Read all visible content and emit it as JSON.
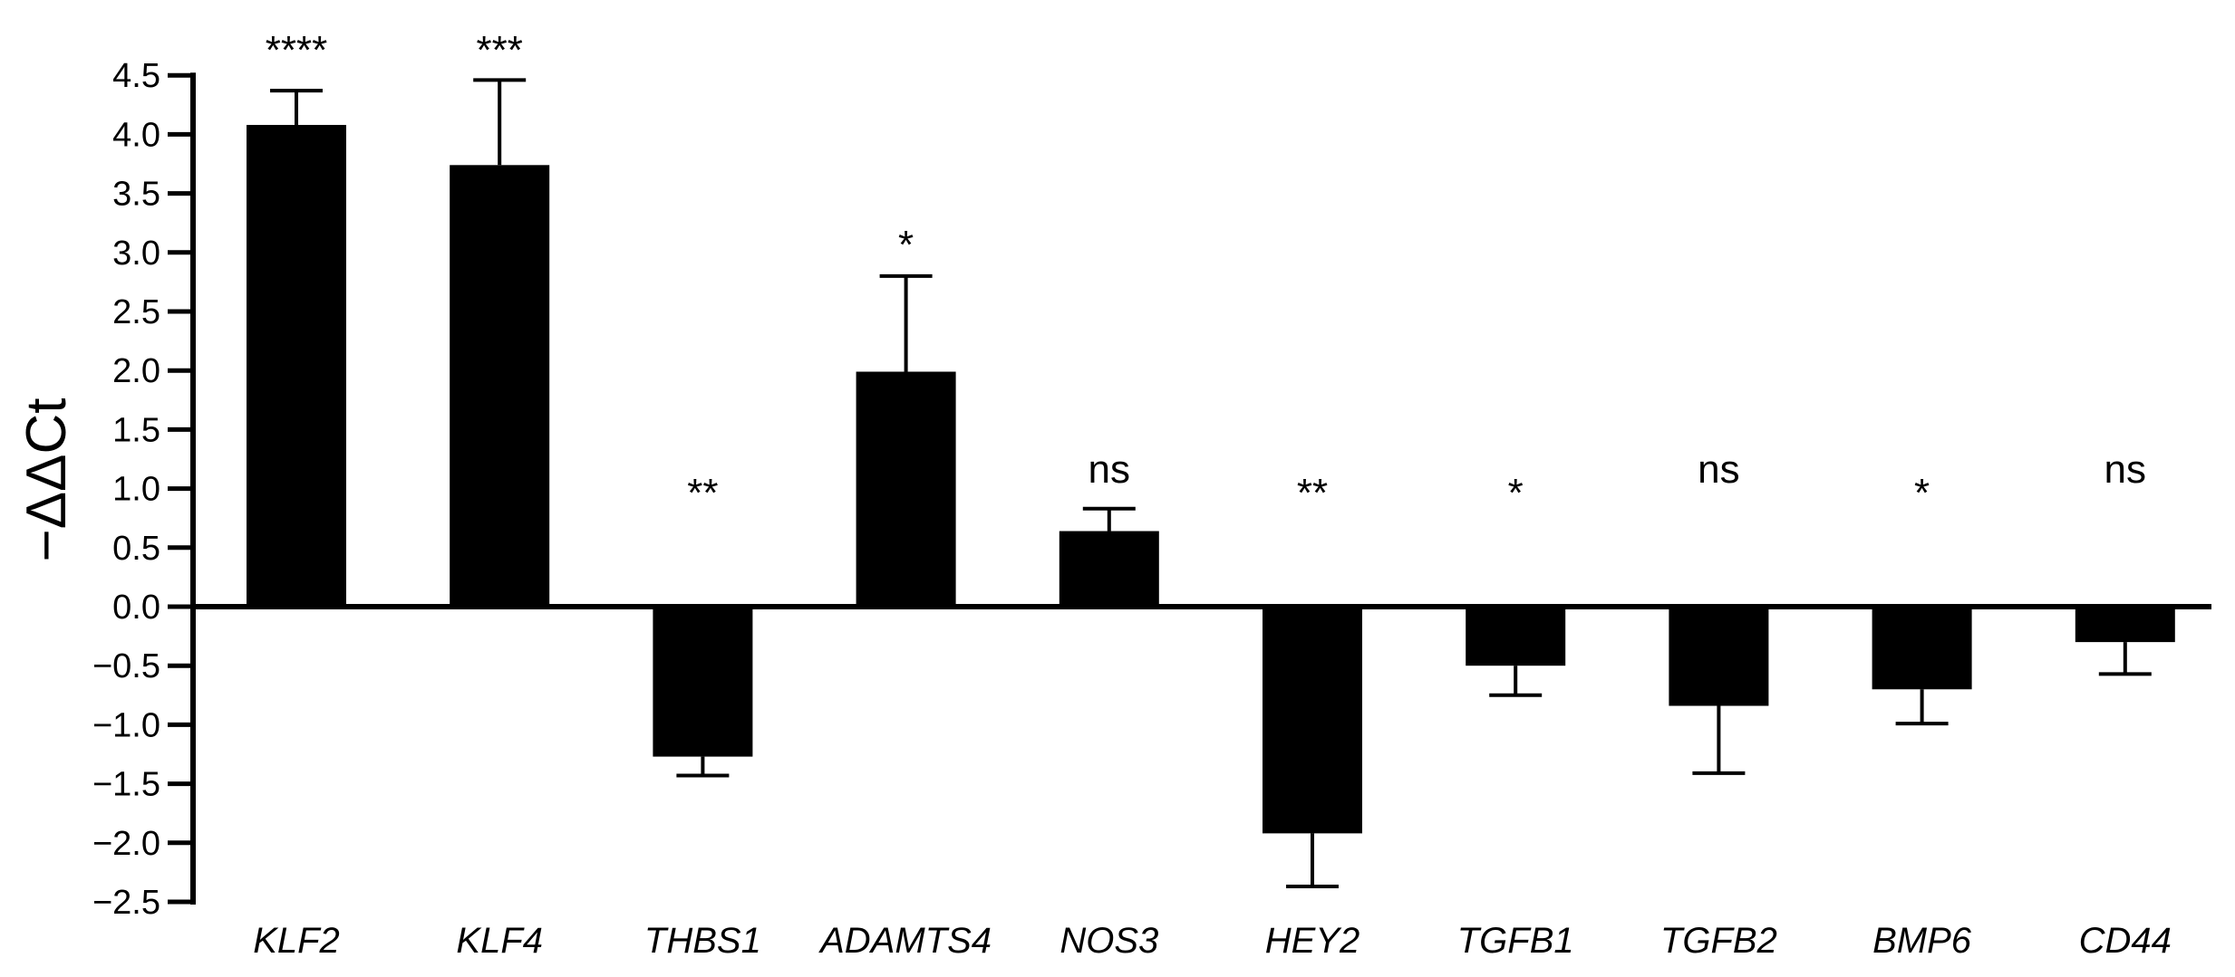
{
  "chart_data": {
    "type": "bar",
    "title": "",
    "xlabel": "",
    "ylabel": "−ΔΔCt",
    "ylim": [
      -2.5,
      4.5
    ],
    "yticks": [
      4.5,
      4.0,
      3.5,
      3.0,
      2.5,
      2.0,
      1.5,
      1.0,
      0.5,
      0.0,
      -0.5,
      -1.0,
      -1.5,
      -2.0,
      -2.5
    ],
    "ytick_labels": [
      "4.5",
      "4.0",
      "3.5",
      "3.0",
      "2.5",
      "2.0",
      "1.5",
      "1.0",
      "0.5",
      "0.0",
      "−0.5",
      "−1.0",
      "−1.5",
      "−2.0",
      "−2.5"
    ],
    "categories": [
      "KLF2",
      "KLF4",
      "THBS1",
      "ADAMTS4",
      "NOS3",
      "HEY2",
      "TGFB1",
      "TGFB2",
      "BMP6",
      "CD44"
    ],
    "values": [
      4.08,
      3.74,
      -1.27,
      1.99,
      0.64,
      -1.92,
      -0.5,
      -0.84,
      -0.7,
      -0.3
    ],
    "error": [
      0.29,
      0.72,
      0.16,
      0.81,
      0.19,
      0.45,
      0.25,
      0.57,
      0.29,
      0.27
    ],
    "significance": [
      "****",
      "***",
      "**",
      "*",
      "ns",
      "**",
      "*",
      "ns",
      "*",
      "ns"
    ],
    "significance_y": [
      4.8,
      4.8,
      1.05,
      3.15,
      1.05,
      1.05,
      1.05,
      1.05,
      1.05,
      1.05
    ],
    "bar_color": "#000000"
  }
}
